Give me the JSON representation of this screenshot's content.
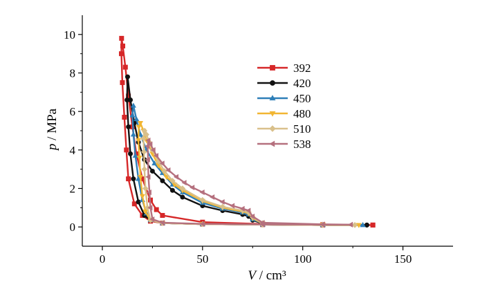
{
  "chart_data": {
    "type": "line",
    "title": "",
    "xlabel_var": "V",
    "xlabel_unit": " / cm³",
    "ylabel_var": "p",
    "ylabel_unit": " / MPa",
    "xlim": [
      -10,
      175
    ],
    "ylim": [
      -1,
      11
    ],
    "xticks": [
      0,
      50,
      100,
      150
    ],
    "yticks": [
      0,
      2,
      4,
      6,
      8,
      10
    ],
    "grid": false,
    "legend_position": "center-right",
    "series": [
      {
        "name": "392",
        "color": "#d62728",
        "marker": "square",
        "x": [
          135,
          110,
          80,
          50,
          30,
          24,
          20,
          16,
          13,
          12,
          11,
          10,
          9.5,
          9.6,
          10.2,
          11.5,
          13,
          15,
          17,
          20,
          24,
          27,
          30,
          50,
          80,
          110,
          135
        ],
        "y": [
          0.1,
          0.1,
          0.12,
          0.15,
          0.2,
          0.3,
          0.6,
          1.2,
          2.5,
          4,
          5.7,
          7.5,
          9.0,
          9.8,
          9.4,
          8.3,
          6.8,
          5.2,
          3.8,
          2.5,
          1.4,
          0.9,
          0.6,
          0.25,
          0.15,
          0.12,
          0.1
        ]
      },
      {
        "name": "420",
        "color": "#111111",
        "marker": "circle",
        "x": [
          132,
          110,
          80,
          50,
          30,
          24,
          21,
          18,
          15.5,
          14,
          13,
          12.3,
          12.6,
          14,
          16,
          18,
          21,
          25,
          30,
          35,
          40,
          50,
          60,
          70,
          73,
          75,
          80,
          110,
          132
        ],
        "y": [
          0.1,
          0.1,
          0.12,
          0.15,
          0.2,
          0.35,
          0.6,
          1.3,
          2.5,
          3.8,
          5.2,
          6.6,
          7.8,
          6.6,
          5.4,
          4.4,
          3.5,
          2.9,
          2.4,
          1.9,
          1.55,
          1.1,
          0.85,
          0.65,
          0.55,
          0.35,
          0.18,
          0.12,
          0.1
        ]
      },
      {
        "name": "450",
        "color": "#2e7fb8",
        "marker": "triangle-up",
        "x": [
          130,
          110,
          80,
          50,
          30,
          24,
          22,
          20,
          18,
          16.5,
          15.5,
          15,
          15.5,
          17,
          19,
          22,
          26,
          30,
          35,
          40,
          50,
          60,
          70,
          73,
          75,
          80,
          110,
          130
        ],
        "y": [
          0.1,
          0.1,
          0.12,
          0.15,
          0.2,
          0.35,
          0.7,
          1.4,
          2.5,
          3.7,
          4.8,
          5.8,
          6.3,
          5.6,
          4.8,
          4.0,
          3.3,
          2.8,
          2.2,
          1.8,
          1.25,
          0.95,
          0.75,
          0.65,
          0.4,
          0.18,
          0.12,
          0.1
        ]
      },
      {
        "name": "480",
        "color": "#f2b632",
        "marker": "triangle-down",
        "x": [
          128,
          110,
          80,
          50,
          30,
          24,
          21.5,
          20,
          19,
          18.5,
          18,
          18.2,
          19,
          20.5,
          22,
          25,
          28,
          32,
          36,
          40,
          50,
          60,
          70,
          73,
          75,
          80,
          110,
          128
        ],
        "y": [
          0.1,
          0.1,
          0.12,
          0.15,
          0.2,
          0.35,
          0.8,
          1.6,
          2.6,
          3.6,
          4.5,
          5.2,
          5.4,
          5.0,
          4.5,
          3.8,
          3.2,
          2.6,
          2.2,
          1.9,
          1.35,
          1.0,
          0.8,
          0.7,
          0.45,
          0.18,
          0.12,
          0.1
        ]
      },
      {
        "name": "510",
        "color": "#d9c08b",
        "marker": "diamond",
        "x": [
          126,
          110,
          80,
          50,
          30,
          24,
          22.5,
          21.5,
          21,
          20.8,
          20.5,
          21,
          22,
          23.5,
          25,
          28,
          31,
          35,
          40,
          50,
          60,
          70,
          73,
          75,
          80,
          110,
          126
        ],
        "y": [
          0.1,
          0.1,
          0.12,
          0.15,
          0.2,
          0.35,
          1.0,
          2.0,
          3.0,
          3.9,
          4.6,
          5.0,
          4.8,
          4.4,
          4.0,
          3.4,
          2.9,
          2.4,
          2.0,
          1.4,
          1.05,
          0.85,
          0.75,
          0.5,
          0.2,
          0.12,
          0.1
        ]
      },
      {
        "name": "538",
        "color": "#b5707e",
        "marker": "triangle-left",
        "x": [
          124,
          110,
          80,
          50,
          30,
          25,
          24,
          23.5,
          23,
          22.8,
          22.6,
          23,
          24,
          25.5,
          27,
          30,
          33,
          37,
          41,
          45,
          50,
          55,
          60,
          65,
          70,
          73,
          75,
          80,
          110,
          124
        ],
        "y": [
          0.12,
          0.12,
          0.13,
          0.16,
          0.22,
          0.4,
          1.0,
          1.8,
          2.6,
          3.5,
          4.2,
          4.5,
          4.3,
          4.0,
          3.7,
          3.3,
          2.95,
          2.6,
          2.3,
          2.05,
          1.8,
          1.55,
          1.3,
          1.1,
          0.95,
          0.85,
          0.55,
          0.22,
          0.14,
          0.12
        ]
      }
    ]
  }
}
